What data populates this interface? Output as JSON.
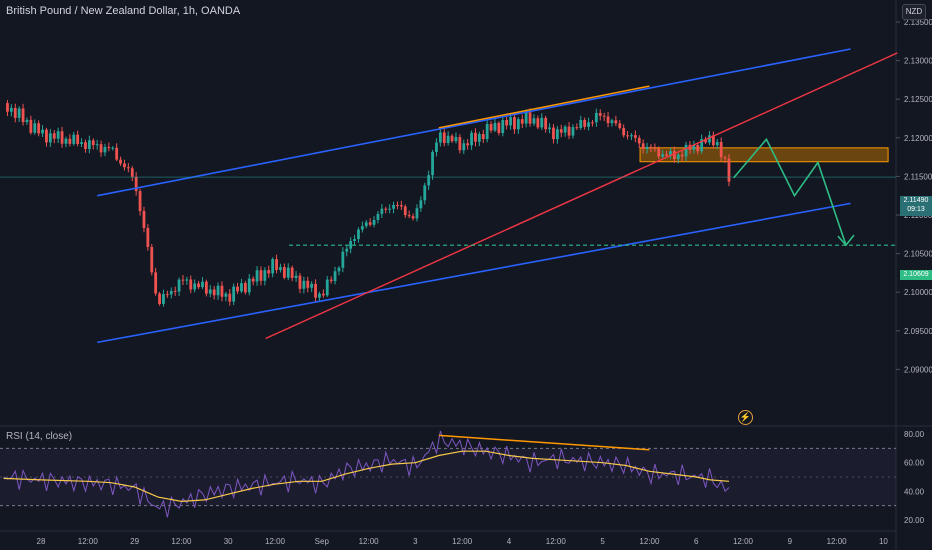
{
  "header": {
    "title": "British Pound / New Zealand Dollar, 1h, OANDA",
    "currency": "NZD"
  },
  "price_tags": {
    "current_price": "2.11490",
    "countdown": "09:13",
    "target_price": "2.10609"
  },
  "indicator": {
    "label": "RSI (14, close)"
  },
  "colors": {
    "background": "#131722",
    "bull": "#26a69a",
    "bear": "#ef5350",
    "channel": "#2962ff",
    "trendline": "#f23645",
    "divergence": "#ff9800",
    "projection": "#2ebd85",
    "zone": "#b36b00",
    "rsi_line": "#7e57c2",
    "rsi_ma": "#f7c948"
  },
  "chart_data": [
    {
      "type": "candlestick",
      "title": "British Pound / New Zealand Dollar, 1h, OANDA",
      "ylim": [
        2.0875,
        2.1375
      ],
      "y_ticks": [
        "2.13500",
        "2.13000",
        "2.12500",
        "2.12000",
        "2.11500",
        "2.11000",
        "2.10500",
        "2.10000",
        "2.09500",
        "2.09000"
      ],
      "y_tick_values": [
        2.135,
        2.13,
        2.125,
        2.12,
        2.115,
        2.11,
        2.105,
        2.1,
        2.095,
        2.09
      ],
      "x_ticks": [
        "28",
        "12:00",
        "29",
        "12:00",
        "30",
        "12:00",
        "Sep",
        "12:00",
        "3",
        "12:00",
        "4",
        "12:00",
        "5",
        "12:00",
        "6",
        "12:00",
        "9",
        "12:00",
        "10"
      ],
      "x_tick_values": [
        0,
        1,
        2,
        3,
        4,
        5,
        6,
        7,
        8,
        9,
        10,
        11,
        12,
        13,
        14,
        15,
        16,
        17,
        18
      ],
      "anchors": [
        [
          -0.8,
          2.1245
        ],
        [
          0,
          2.1205
        ],
        [
          1.5,
          2.1185
        ],
        [
          2,
          2.1145
        ],
        [
          2.5,
          2.0985
        ],
        [
          3,
          2.1015
        ],
        [
          4,
          2.0995
        ],
        [
          5,
          2.1035
        ],
        [
          6,
          2.0995
        ],
        [
          6.7,
          2.1075
        ],
        [
          7.5,
          2.1115
        ],
        [
          8,
          2.1095
        ],
        [
          8.5,
          2.1205
        ],
        [
          9,
          2.119
        ],
        [
          9.7,
          2.1215
        ],
        [
          10.5,
          2.1225
        ],
        [
          11,
          2.1205
        ],
        [
          11.5,
          2.1215
        ],
        [
          12,
          2.123
        ],
        [
          12.5,
          2.1205
        ],
        [
          13,
          2.1185
        ],
        [
          13.5,
          2.1175
        ],
        [
          14,
          2.119
        ],
        [
          14.4,
          2.12
        ],
        [
          14.7,
          2.115
        ]
      ],
      "current_price": 2.1149,
      "target_level": 2.10609,
      "channel_upper": [
        [
          1.2,
          2.1125
        ],
        [
          17.3,
          2.1315
        ]
      ],
      "channel_lower": [
        [
          1.2,
          2.0935
        ],
        [
          17.3,
          2.1115
        ]
      ],
      "red_trendline": [
        [
          4.8,
          2.094
        ],
        [
          18.3,
          2.131
        ]
      ],
      "divergence_high": [
        [
          8.5,
          2.1213
        ],
        [
          13,
          2.1267
        ]
      ],
      "resistance_zone": {
        "from": 12.8,
        "to": 18.1,
        "top": 2.1187,
        "bottom": 2.1169
      },
      "projection_path": [
        [
          14.8,
          2.1148
        ],
        [
          15.5,
          2.1198
        ],
        [
          16.1,
          2.1125
        ],
        [
          16.6,
          2.1168
        ],
        [
          17.2,
          2.1061
        ]
      ]
    },
    {
      "type": "line",
      "title": "RSI (14, close)",
      "ylim": [
        15,
        85
      ],
      "y_ticks": [
        "80.00",
        "60.00",
        "40.00",
        "20.00"
      ],
      "y_tick_values": [
        80,
        60,
        40,
        20
      ],
      "levels": [
        70,
        30
      ],
      "rsi": [
        [
          -0.8,
          50
        ],
        [
          0,
          48
        ],
        [
          1,
          46
        ],
        [
          1.5,
          45
        ],
        [
          2,
          42
        ],
        [
          2.5,
          28
        ],
        [
          3,
          32
        ],
        [
          3.5,
          38
        ],
        [
          4,
          42
        ],
        [
          4.5,
          44
        ],
        [
          5,
          46
        ],
        [
          5.5,
          48
        ],
        [
          6,
          45
        ],
        [
          6.5,
          55
        ],
        [
          7,
          58
        ],
        [
          7.5,
          62
        ],
        [
          8,
          57
        ],
        [
          8.5,
          76
        ],
        [
          9,
          72
        ],
        [
          9.5,
          68
        ],
        [
          10,
          65
        ],
        [
          10.5,
          60
        ],
        [
          11,
          63
        ],
        [
          11.5,
          61
        ],
        [
          12,
          60
        ],
        [
          12.5,
          58
        ],
        [
          13,
          52
        ],
        [
          13.5,
          52
        ],
        [
          14,
          50
        ],
        [
          14.3,
          49
        ],
        [
          14.7,
          40
        ]
      ],
      "rsi_ma": [
        [
          -0.8,
          49
        ],
        [
          0,
          48
        ],
        [
          1,
          47
        ],
        [
          1.5,
          46
        ],
        [
          2,
          43
        ],
        [
          2.5,
          36
        ],
        [
          3,
          33
        ],
        [
          3.5,
          34
        ],
        [
          4,
          38
        ],
        [
          4.5,
          42
        ],
        [
          5,
          45
        ],
        [
          5.5,
          47
        ],
        [
          6,
          47
        ],
        [
          6.5,
          52
        ],
        [
          7,
          56
        ],
        [
          7.5,
          59
        ],
        [
          8,
          60
        ],
        [
          8.5,
          65
        ],
        [
          9,
          68
        ],
        [
          9.5,
          68
        ],
        [
          10,
          65
        ],
        [
          10.5,
          63
        ],
        [
          11,
          62
        ],
        [
          11.5,
          61
        ],
        [
          12,
          60
        ],
        [
          12.5,
          58
        ],
        [
          13,
          54
        ],
        [
          13.5,
          52
        ],
        [
          14,
          50
        ],
        [
          14.3,
          48
        ],
        [
          14.7,
          47
        ]
      ],
      "divergence_low": [
        [
          8.5,
          79
        ],
        [
          13,
          69
        ]
      ]
    }
  ]
}
